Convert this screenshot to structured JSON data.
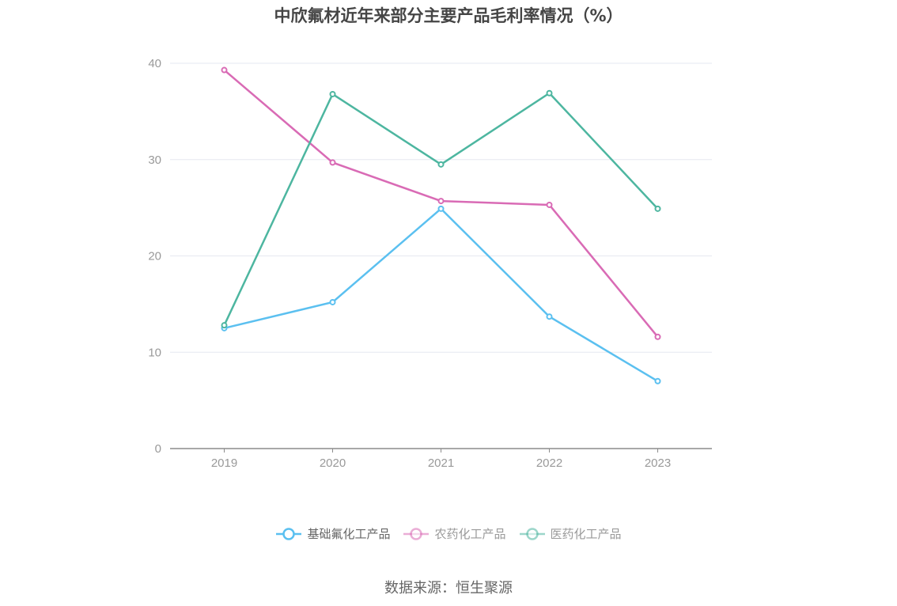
{
  "title": "中欣氟材近年来部分主要产品毛利率情况（%）",
  "source": "数据来源：恒生聚源",
  "chart_data": {
    "type": "line",
    "title": "中欣氟材近年来部分主要产品毛利率情况（%）",
    "categories": [
      "2019",
      "2020",
      "2021",
      "2022",
      "2023"
    ],
    "ylim": [
      0,
      40
    ],
    "yticks": [
      0,
      10,
      20,
      30,
      40
    ],
    "grid": true,
    "legend_position": "bottom",
    "series": [
      {
        "name": "基础氟化工产品",
        "color": "#5bc0f0",
        "values": [
          12.5,
          15.2,
          24.9,
          13.7,
          7.0
        ]
      },
      {
        "name": "农药化工产品",
        "color": "#d96bb5",
        "values": [
          39.3,
          29.7,
          25.7,
          25.3,
          11.6
        ]
      },
      {
        "name": "医药化工产品",
        "color": "#4db6a0",
        "values": [
          12.8,
          36.8,
          29.5,
          36.9,
          24.9
        ]
      }
    ]
  }
}
